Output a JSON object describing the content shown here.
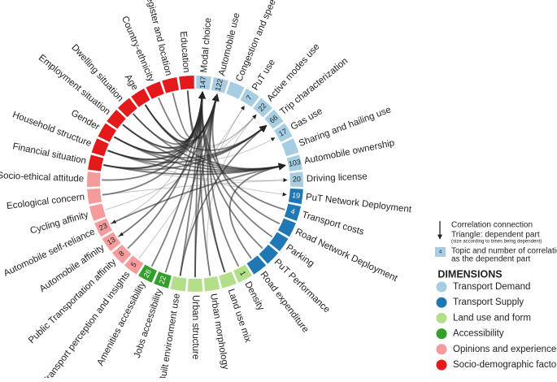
{
  "chart_data": {
    "type": "chord",
    "groups": [
      {
        "name": "Transport Demand",
        "color": "#a6cde2"
      },
      {
        "name": "Transport Supply",
        "color": "#1f77b4"
      },
      {
        "name": "Land use and form",
        "color": "#b3df8a"
      },
      {
        "name": "Accessibility",
        "color": "#33a02c"
      },
      {
        "name": "Opinions and experiences",
        "color": "#f59b9b"
      },
      {
        "name": "Socio-demographic factors",
        "color": "#e3191c"
      }
    ],
    "nodes": [
      {
        "name": "Modal choice",
        "group": 0,
        "count": 147
      },
      {
        "name": "Automobile use",
        "group": 0,
        "count": 122
      },
      {
        "name": "Congestion and speed",
        "group": 0
      },
      {
        "name": "PuT use",
        "group": 0,
        "count": 7
      },
      {
        "name": "Active modes use",
        "group": 0,
        "count": 22
      },
      {
        "name": "Trip characterization",
        "group": 0,
        "count": 66
      },
      {
        "name": "Gas use",
        "group": 0,
        "count": 17
      },
      {
        "name": "Sharing and hailing use",
        "group": 0
      },
      {
        "name": "Automobile ownership",
        "group": 0,
        "count": 103
      },
      {
        "name": "Driving license",
        "group": 0,
        "count": 20
      },
      {
        "name": "PuT Network Deployment",
        "group": 1,
        "count": 19
      },
      {
        "name": "Transport costs",
        "group": 1,
        "count": 4
      },
      {
        "name": "Road Network Deployment",
        "group": 1
      },
      {
        "name": "Parking",
        "group": 1
      },
      {
        "name": "PuT Performance",
        "group": 1
      },
      {
        "name": "Road expenditure",
        "group": 1
      },
      {
        "name": "Density",
        "group": 2,
        "count": 1
      },
      {
        "name": "Land use mix",
        "group": 2
      },
      {
        "name": "Urban morphology",
        "group": 2
      },
      {
        "name": "Urban structure",
        "group": 2
      },
      {
        "name": "Built environment use",
        "group": 2
      },
      {
        "name": "Jobs accessibility",
        "group": 3,
        "count": 22
      },
      {
        "name": "Amenities accessibility",
        "group": 3,
        "count": 26
      },
      {
        "name": "Transport perception and insights",
        "group": 4,
        "count": 5
      },
      {
        "name": "Public Transportation affinity",
        "group": 4,
        "count": 8
      },
      {
        "name": "Automobile affinity",
        "group": 4,
        "count": 13
      },
      {
        "name": "Automobile self-reliance",
        "group": 4,
        "count": 23
      },
      {
        "name": "Cycling affinity",
        "group": 4
      },
      {
        "name": "Ecological concern",
        "group": 4
      },
      {
        "name": "Socio-ethical attitude",
        "group": 4
      },
      {
        "name": "Financial situation",
        "group": 5
      },
      {
        "name": "Household structure",
        "group": 5
      },
      {
        "name": "Gender",
        "group": 5
      },
      {
        "name": "Employment situation",
        "group": 5
      },
      {
        "name": "Dwelling situation",
        "group": 5
      },
      {
        "name": "Age",
        "group": 5
      },
      {
        "name": "Country-ethnicity",
        "group": 5
      },
      {
        "name": "Register and location",
        "group": 5
      },
      {
        "name": "Education",
        "group": 5
      }
    ],
    "links": [
      [
        30,
        0
      ],
      [
        31,
        0
      ],
      [
        32,
        0
      ],
      [
        33,
        0
      ],
      [
        34,
        0
      ],
      [
        35,
        0
      ],
      [
        36,
        0
      ],
      [
        37,
        0
      ],
      [
        38,
        0
      ],
      [
        30,
        1
      ],
      [
        31,
        1
      ],
      [
        32,
        1
      ],
      [
        33,
        1
      ],
      [
        35,
        1
      ],
      [
        38,
        1
      ],
      [
        30,
        8
      ],
      [
        31,
        8
      ],
      [
        32,
        8
      ],
      [
        33,
        8
      ],
      [
        35,
        8
      ],
      [
        34,
        8
      ],
      [
        30,
        5
      ],
      [
        31,
        5
      ],
      [
        32,
        5
      ],
      [
        35,
        5
      ],
      [
        33,
        4
      ],
      [
        35,
        4
      ],
      [
        17,
        0
      ],
      [
        18,
        0
      ],
      [
        19,
        0
      ],
      [
        20,
        0
      ],
      [
        16,
        1
      ],
      [
        17,
        1
      ],
      [
        19,
        1
      ],
      [
        20,
        5
      ],
      [
        18,
        4
      ],
      [
        13,
        0
      ],
      [
        12,
        1
      ],
      [
        14,
        0
      ],
      [
        15,
        8
      ],
      [
        22,
        0
      ],
      [
        21,
        1
      ],
      [
        28,
        0
      ],
      [
        29,
        0
      ],
      [
        27,
        4
      ],
      [
        25,
        1
      ],
      [
        24,
        0
      ],
      [
        23,
        3
      ],
      [
        26,
        8
      ],
      [
        0,
        26
      ],
      [
        1,
        25
      ],
      [
        28,
        9
      ],
      [
        30,
        9
      ],
      [
        31,
        10
      ],
      [
        32,
        6
      ],
      [
        20,
        3
      ],
      [
        11,
        0
      ]
    ],
    "legend": {
      "connection": "Correlation connection",
      "triangle": "Triangle: dependent part",
      "triangle_note": "(size according to times being dependent)",
      "box_value": 4,
      "box_text": [
        "Topic and number of correlations",
        "as the dependent part"
      ],
      "dimensions_title": "DIMENSIONS"
    }
  }
}
